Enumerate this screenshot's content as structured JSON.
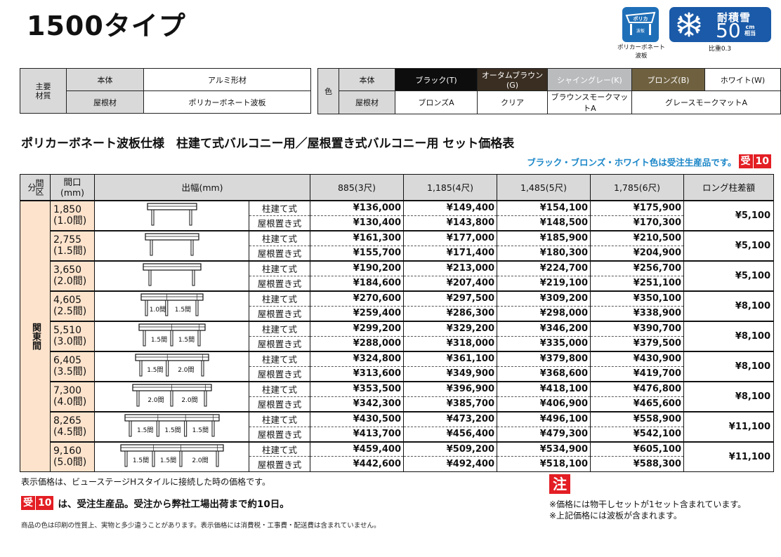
{
  "title": "1500タイプ",
  "icons": {
    "polycarbonate": {
      "name": "polycarbonate-corrugated-icon",
      "inner_top": "ポリカ",
      "inner_bottom": "波板",
      "caption_line1": "ポリカーボネート",
      "caption_line2": "波板",
      "color": "#1f6fb8"
    },
    "snow": {
      "name": "snowflake-icon",
      "label": "耐積雪",
      "value": "50",
      "unit_top": "cm",
      "unit_bottom": "相当",
      "caption": "比重0.3",
      "color": "#1a5aa8"
    }
  },
  "materials": {
    "group_label": "主要材質",
    "rows": [
      {
        "label": "本体",
        "value": "アルミ形材"
      },
      {
        "label": "屋根材",
        "value": "ポリカーボネート波板"
      }
    ]
  },
  "colors": {
    "group_label": "色",
    "body_label": "本体",
    "body_options": [
      {
        "label": "ブラック(T)",
        "bg": "#0d0d0d",
        "fg": "#ffffff"
      },
      {
        "label": "オータムブラウン(G)",
        "bg": "#3a2e22",
        "fg": "#ffffff"
      },
      {
        "label": "シャイングレー(K)",
        "bg": "#b9bbbd",
        "fg": "#ffffff"
      },
      {
        "label": "ブロンズ(B)",
        "bg": "#6f6140",
        "fg": "#ffffff"
      },
      {
        "label": "ホワイト(W)",
        "bg": "#ffffff",
        "fg": "#111111"
      }
    ],
    "roof_label": "屋根材",
    "roof_options": [
      "ブロンズA",
      "クリア",
      "ブラウンスモークマットA",
      "グレースモークマットA"
    ]
  },
  "subtitle": "ポリカーボネート波板仕様　柱建て式バルコニー用／屋根置き式バルコニー用 セット価格表",
  "notice": {
    "text": "ブラック・ブロンズ・ホワイト色は受注生産品です。",
    "badge_a": "受",
    "badge_b": "10"
  },
  "price_table": {
    "headers": {
      "kubun": "間区分",
      "maguchi_1": "間口",
      "maguchi_2": "(mm)",
      "dehaba": "出幅(mm)",
      "cols": [
        "885(3尺)",
        "1,185(4尺)",
        "1,485(5尺)",
        "1,785(6尺)"
      ],
      "long": "ロング柱差額"
    },
    "kubun_value": "関東間",
    "type_labels": [
      "柱建て式",
      "屋根置き式"
    ],
    "rows": [
      {
        "width": "1,850",
        "ken": "(1.0間)",
        "spans": [],
        "hashira": [
          "¥136,000",
          "¥149,400",
          "¥154,100",
          "¥175,900"
        ],
        "yane": [
          "¥130,400",
          "¥143,800",
          "¥148,500",
          "¥170,300"
        ],
        "long": "¥5,100"
      },
      {
        "width": "2,755",
        "ken": "(1.5間)",
        "spans": [],
        "hashira": [
          "¥161,300",
          "¥177,000",
          "¥185,900",
          "¥210,500"
        ],
        "yane": [
          "¥155,700",
          "¥171,400",
          "¥180,300",
          "¥204,900"
        ],
        "long": "¥5,100"
      },
      {
        "width": "3,650",
        "ken": "(2.0間)",
        "spans": [],
        "hashira": [
          "¥190,200",
          "¥213,000",
          "¥224,700",
          "¥256,700"
        ],
        "yane": [
          "¥184,600",
          "¥207,400",
          "¥219,100",
          "¥251,100"
        ],
        "long": "¥5,100"
      },
      {
        "width": "4,605",
        "ken": "(2.5間)",
        "spans": [
          "1.0間",
          "1.5間"
        ],
        "hashira": [
          "¥270,600",
          "¥297,500",
          "¥309,200",
          "¥350,100"
        ],
        "yane": [
          "¥259,400",
          "¥286,300",
          "¥298,000",
          "¥338,900"
        ],
        "long": "¥8,100"
      },
      {
        "width": "5,510",
        "ken": "(3.0間)",
        "spans": [
          "1.5間",
          "1.5間"
        ],
        "hashira": [
          "¥299,200",
          "¥329,200",
          "¥346,200",
          "¥390,700"
        ],
        "yane": [
          "¥288,000",
          "¥318,000",
          "¥335,000",
          "¥379,500"
        ],
        "long": "¥8,100"
      },
      {
        "width": "6,405",
        "ken": "(3.5間)",
        "spans": [
          "1.5間",
          "2.0間"
        ],
        "hashira": [
          "¥324,800",
          "¥361,100",
          "¥379,800",
          "¥430,900"
        ],
        "yane": [
          "¥313,600",
          "¥349,900",
          "¥368,600",
          "¥419,700"
        ],
        "long": "¥8,100"
      },
      {
        "width": "7,300",
        "ken": "(4.0間)",
        "spans": [
          "2.0間",
          "2.0間"
        ],
        "hashira": [
          "¥353,500",
          "¥396,900",
          "¥418,100",
          "¥476,800"
        ],
        "yane": [
          "¥342,300",
          "¥385,700",
          "¥406,900",
          "¥465,600"
        ],
        "long": "¥8,100"
      },
      {
        "width": "8,265",
        "ken": "(4.5間)",
        "spans": [
          "1.5間",
          "1.5間",
          "1.5間"
        ],
        "hashira": [
          "¥430,500",
          "¥473,200",
          "¥496,100",
          "¥558,900"
        ],
        "yane": [
          "¥413,700",
          "¥456,400",
          "¥479,300",
          "¥542,100"
        ],
        "long": "¥11,100"
      },
      {
        "width": "9,160",
        "ken": "(5.0間)",
        "spans": [
          "1.5間",
          "1.5間",
          "2.0間"
        ],
        "hashira": [
          "¥459,400",
          "¥509,200",
          "¥534,900",
          "¥605,100"
        ],
        "yane": [
          "¥442,600",
          "¥492,400",
          "¥518,100",
          "¥588,300"
        ],
        "long": "¥11,100"
      }
    ]
  },
  "footer": {
    "line1": "表示価格は、ビューステージHスタイルに接続した時の価格です。",
    "badge_a": "受",
    "badge_b": "10",
    "line2": "は、受注生産品。受注から弊社工場出荷まで約10日。",
    "line3": "商品の色は印刷の性質上、実物と多少違うことがあります。表示価格には消費税・工事費・配送費は含まれていません。",
    "note_badge": "注",
    "note1": "※価格には物干しセットが1セット含まれています。",
    "note2": "※上記価格には波板が含まれます。"
  }
}
